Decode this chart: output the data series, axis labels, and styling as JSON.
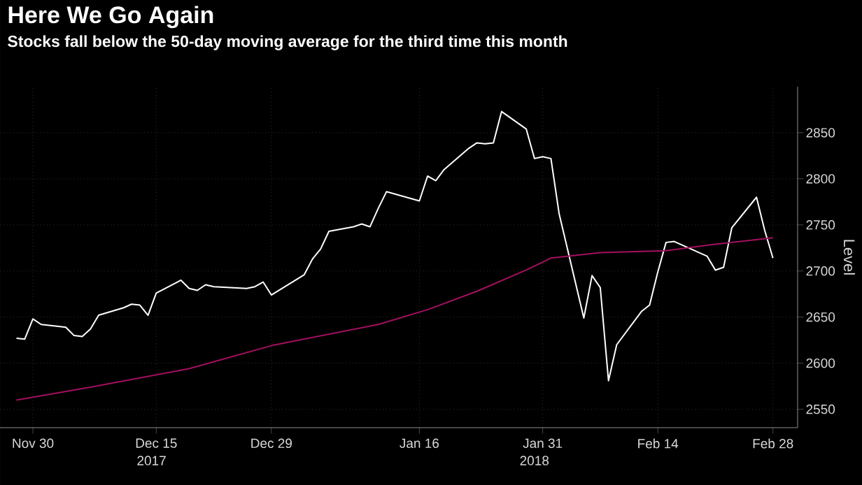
{
  "chart_data": {
    "type": "line",
    "title": "Here We Go Again",
    "subtitle": "Stocks fall below the 50-day moving average for the third time this month",
    "ylabel": "Level",
    "x": [
      "2017-11-28",
      "2017-11-29",
      "2017-11-30",
      "2017-12-01",
      "2017-12-04",
      "2017-12-05",
      "2017-12-06",
      "2017-12-07",
      "2017-12-08",
      "2017-12-11",
      "2017-12-12",
      "2017-12-13",
      "2017-12-14",
      "2017-12-15",
      "2017-12-18",
      "2017-12-19",
      "2017-12-20",
      "2017-12-21",
      "2017-12-22",
      "2017-12-26",
      "2017-12-27",
      "2017-12-28",
      "2017-12-29",
      "2018-01-02",
      "2018-01-03",
      "2018-01-04",
      "2018-01-05",
      "2018-01-08",
      "2018-01-09",
      "2018-01-10",
      "2018-01-11",
      "2018-01-12",
      "2018-01-16",
      "2018-01-17",
      "2018-01-18",
      "2018-01-19",
      "2018-01-22",
      "2018-01-23",
      "2018-01-24",
      "2018-01-25",
      "2018-01-26",
      "2018-01-29",
      "2018-01-30",
      "2018-01-31",
      "2018-02-01",
      "2018-02-02",
      "2018-02-05",
      "2018-02-06",
      "2018-02-07",
      "2018-02-08",
      "2018-02-09",
      "2018-02-12",
      "2018-02-13",
      "2018-02-14",
      "2018-02-15",
      "2018-02-16",
      "2018-02-20",
      "2018-02-21",
      "2018-02-22",
      "2018-02-23",
      "2018-02-26",
      "2018-02-27",
      "2018-02-28"
    ],
    "series": [
      {
        "color": "#ffffff",
        "values": [
          2627,
          2626,
          2648,
          2642,
          2639,
          2630,
          2629,
          2637,
          2652,
          2660,
          2664,
          2663,
          2652,
          2676,
          2690,
          2681,
          2679,
          2685,
          2683,
          2681,
          2683,
          2688,
          2674,
          2696,
          2713,
          2724,
          2743,
          2748,
          2751,
          2748,
          2768,
          2786,
          2776,
          2803,
          2798,
          2810,
          2833,
          2839,
          2838,
          2839,
          2873,
          2854,
          2822,
          2824,
          2822,
          2762,
          2649,
          2695,
          2682,
          2581,
          2620,
          2656,
          2663,
          2699,
          2731,
          2732,
          2716,
          2701,
          2704,
          2747,
          2780,
          2744,
          2714
        ]
      },
      {
        "color": "#a3105f",
        "x": [
          "2017-11-28",
          "2017-12-07",
          "2017-12-19",
          "2017-12-29",
          "2018-01-11",
          "2018-01-17",
          "2018-01-23",
          "2018-01-29",
          "2018-02-01",
          "2018-02-07",
          "2018-02-15",
          "2018-02-21",
          "2018-02-28"
        ],
        "values": [
          2560,
          2574,
          2594,
          2619,
          2642,
          2658,
          2678,
          2701,
          2714,
          2720,
          2722,
          2729,
          2736
        ]
      }
    ],
    "xlim": [
      "2017-11-26",
      "2018-03-03"
    ],
    "xticks": [
      {
        "value": "2017-11-30",
        "label": "Nov 30"
      },
      {
        "value": "2017-12-15",
        "label": "Dec 15"
      },
      {
        "value": "2017-12-29",
        "label": "Dec 29"
      },
      {
        "value": "2018-01-16",
        "label": "Jan 16"
      },
      {
        "value": "2018-01-31",
        "label": "Jan 31"
      },
      {
        "value": "2018-02-14",
        "label": "Feb 14"
      },
      {
        "value": "2018-02-28",
        "label": "Feb 28"
      }
    ],
    "annotations": [
      "2017",
      "2018"
    ],
    "ylim": [
      2530,
      2900
    ],
    "yticks": [
      2550,
      2600,
      2650,
      2700,
      2750,
      2800,
      2850
    ],
    "grid": true,
    "marker": "none",
    "line_style": "solid"
  }
}
